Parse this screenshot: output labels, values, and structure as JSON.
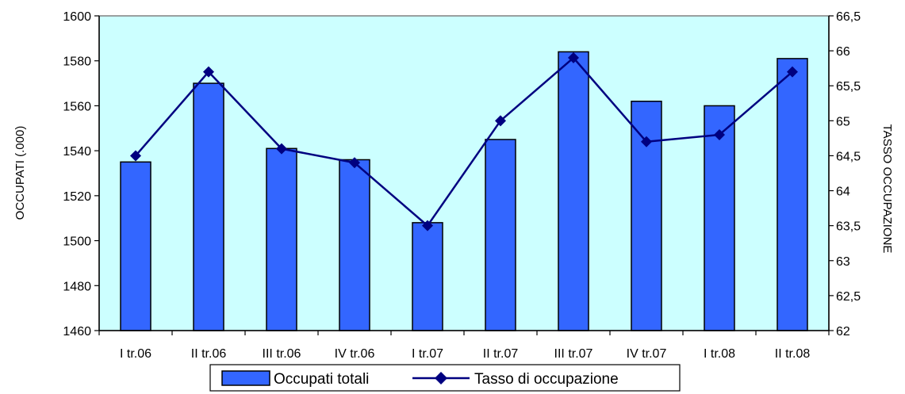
{
  "chart_data": {
    "type": "bar",
    "categories": [
      "I tr.06",
      "II tr.06",
      "III tr.06",
      "IV tr.06",
      "I tr.07",
      "II tr.07",
      "III tr.07",
      "IV tr.07",
      "I tr.08",
      "II tr.08"
    ],
    "series": [
      {
        "name": "Occupati totali",
        "type": "bar",
        "axis": "left",
        "color": "#3366FF",
        "values": [
          1535,
          1570,
          1541,
          1536,
          1508,
          1545,
          1584,
          1562,
          1560,
          1581
        ]
      },
      {
        "name": "Tasso di occupazione",
        "type": "line",
        "axis": "right",
        "color": "#000080",
        "marker": "diamond",
        "values": [
          64.5,
          65.7,
          64.6,
          64.4,
          63.5,
          65.0,
          65.9,
          64.7,
          64.8,
          65.7
        ]
      }
    ],
    "ylabel": "OCCUPATI (.000)",
    "y2label": "TASSO OCCUPAZIONE",
    "ylim": [
      1460,
      1600
    ],
    "y2lim": [
      62,
      66.5
    ],
    "yticks": [
      "1460",
      "1480",
      "1500",
      "1520",
      "1540",
      "1560",
      "1580",
      "1600"
    ],
    "y2ticks": [
      "62",
      "62,5",
      "63",
      "63,5",
      "64",
      "64,5",
      "65",
      "65,5",
      "66",
      "66,5"
    ],
    "plot_background": "#CCFFFF",
    "grid": false,
    "legend": "bottom"
  }
}
